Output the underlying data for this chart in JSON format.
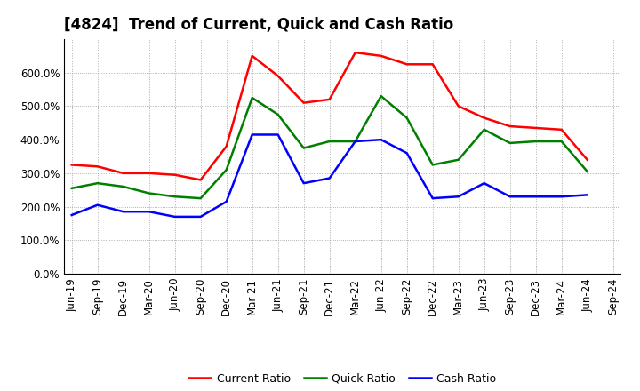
{
  "title": "[4824]  Trend of Current, Quick and Cash Ratio",
  "labels": [
    "Jun-19",
    "Sep-19",
    "Dec-19",
    "Mar-20",
    "Jun-20",
    "Sep-20",
    "Dec-20",
    "Mar-21",
    "Jun-21",
    "Sep-21",
    "Dec-21",
    "Mar-22",
    "Jun-22",
    "Sep-22",
    "Dec-22",
    "Mar-23",
    "Jun-23",
    "Sep-23",
    "Dec-23",
    "Mar-24",
    "Jun-24",
    "Sep-24"
  ],
  "current_ratio": [
    325,
    320,
    300,
    300,
    295,
    280,
    380,
    650,
    590,
    510,
    520,
    660,
    650,
    625,
    625,
    500,
    465,
    440,
    435,
    430,
    340,
    null
  ],
  "quick_ratio": [
    255,
    270,
    260,
    240,
    230,
    225,
    310,
    525,
    475,
    375,
    395,
    395,
    530,
    465,
    325,
    340,
    430,
    390,
    395,
    395,
    305,
    null
  ],
  "cash_ratio": [
    175,
    205,
    185,
    185,
    170,
    170,
    215,
    415,
    415,
    270,
    285,
    395,
    400,
    360,
    225,
    230,
    270,
    230,
    230,
    230,
    235,
    null
  ],
  "current_color": "#ff0000",
  "quick_color": "#008000",
  "cash_color": "#0000ff",
  "ylim": [
    0,
    700
  ],
  "yticks": [
    0,
    100,
    200,
    300,
    400,
    500,
    600
  ],
  "background_color": "#ffffff",
  "grid_color": "#999999",
  "title_fontsize": 12,
  "tick_fontsize": 8.5,
  "line_width": 1.8
}
